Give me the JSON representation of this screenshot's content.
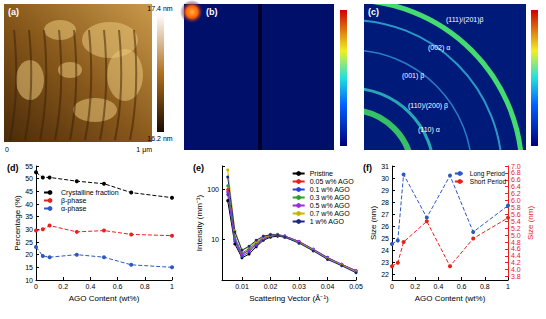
{
  "panels": {
    "a": {
      "label": "(a)",
      "scale_start": "0",
      "scale_end": "1 μm",
      "colorbar_max": "17.4 nm",
      "colorbar_min": "16.2 nm"
    },
    "b": {
      "label": "(b)"
    },
    "c": {
      "label": "(c)",
      "rings": [
        "(110) α",
        "(110)/(200) β",
        "(001) β",
        "(002) α",
        "(111)/(201)β"
      ]
    }
  },
  "chart_data": [
    {
      "type": "line",
      "title": "(d)",
      "x_label": "AGO Content (wt%)",
      "y_label": "Percentage (%)",
      "x": [
        0,
        0.05,
        0.1,
        0.3,
        0.5,
        0.7,
        1
      ],
      "series": [
        {
          "name": "Crystalline fraction",
          "color": "#000000",
          "marker": "circle",
          "line_style": "dashed",
          "values": [
            52.5,
            50.5,
            50.5,
            49,
            48,
            44.5,
            42.5
          ]
        },
        {
          "name": "β-phase",
          "color": "#e8201c",
          "marker": "circle",
          "line_style": "dashed",
          "values": [
            29.5,
            30,
            31.5,
            29,
            29.5,
            28,
            27.5
          ]
        },
        {
          "name": "α-phase",
          "color": "#2b58c4",
          "marker": "circle",
          "line_style": "dashed",
          "values": [
            23,
            19.5,
            19,
            20,
            19,
            16,
            15
          ]
        }
      ],
      "xlim": [
        0,
        1
      ],
      "xticks": [
        0,
        0.2,
        0.4,
        0.6,
        0.8,
        1
      ],
      "ylim": [
        10,
        55
      ],
      "yticks": [
        10,
        15,
        20,
        25,
        30,
        35,
        40,
        45,
        50,
        55
      ],
      "grid": false,
      "legend": "center left"
    },
    {
      "type": "line",
      "title": "(e)",
      "x_label": "Scattering Vector (Å⁻¹)",
      "y_label": "Intensity (mm⁻¹)",
      "x": [
        0.005,
        0.0075,
        0.01,
        0.0125,
        0.015,
        0.0175,
        0.02,
        0.0225,
        0.025,
        0.03,
        0.035,
        0.04,
        0.045,
        0.05
      ],
      "series": [
        {
          "name": "Pristine",
          "color": "#000000",
          "marker": "circle",
          "line_style": "solid",
          "values": [
            60,
            8,
            4.2,
            5,
            7,
            9.5,
            11,
            11.5,
            11,
            8.5,
            6,
            4,
            3,
            2.2
          ]
        },
        {
          "name": "0.05 w% AGO",
          "color": "#e8201c",
          "marker": "circle",
          "line_style": "solid",
          "values": [
            100,
            10,
            4.8,
            6,
            8,
            10.5,
            12,
            12.2,
            11.5,
            9,
            6.2,
            4.2,
            3.1,
            2.3
          ]
        },
        {
          "name": "0.1 w% AGO",
          "color": "#2b3fd8",
          "marker": "circle",
          "line_style": "solid",
          "values": [
            80,
            9,
            4.5,
            5.5,
            7.5,
            10,
            11.5,
            12,
            11.5,
            9,
            6.3,
            4.3,
            3.1,
            2.3
          ]
        },
        {
          "name": "0.3 w% AGO",
          "color": "#2ca02c",
          "marker": "circle",
          "line_style": "solid",
          "values": [
            120,
            11,
            5.2,
            6.5,
            8.5,
            11,
            12.5,
            12.5,
            11.5,
            8.8,
            6,
            4.1,
            3,
            2.2
          ]
        },
        {
          "name": "0.5 w% AGO",
          "color": "#9a2ed6",
          "marker": "circle",
          "line_style": "solid",
          "values": [
            90,
            10,
            5,
            6,
            8,
            10.5,
            12,
            12.3,
            11.6,
            9,
            6.2,
            4.2,
            3.1,
            2.3
          ]
        },
        {
          "name": "0.7 w% AGO",
          "color": "#c9b400",
          "marker": "circle",
          "line_style": "solid",
          "values": [
            250,
            15,
            6,
            7,
            9,
            11,
            12,
            12,
            11,
            8.5,
            6,
            4,
            3,
            2.2
          ]
        },
        {
          "name": "1 w% AGO",
          "color": "#1b2a80",
          "marker": "circle",
          "line_style": "solid",
          "values": [
            180,
            14,
            6,
            7.2,
            9.5,
            11.5,
            12.3,
            12,
            11,
            8.3,
            5.8,
            3.9,
            2.9,
            2.1
          ]
        }
      ],
      "xlim": [
        0.003,
        0.05
      ],
      "xticks": [
        0.01,
        0.02,
        0.03,
        0.04,
        0.05
      ],
      "ylim": [
        1.5,
        300
      ],
      "yticks": [
        10,
        100
      ],
      "log": "y",
      "grid": false,
      "legend": "upper right"
    },
    {
      "type": "line",
      "title": "(f)",
      "x_label": "AGO Content (wt%)",
      "y_label": "Size (nm)",
      "y2_label": "Size (nm)",
      "x": [
        0,
        0.05,
        0.1,
        0.3,
        0.5,
        0.7,
        1
      ],
      "series": [
        {
          "name": "Long Period",
          "color": "#2b58c4",
          "marker": "circle",
          "line_style": "dashed",
          "values": [
            24.5,
            24.8,
            30.3,
            26.7,
            30.2,
            25.5,
            27.7
          ]
        },
        {
          "name": "Short Period",
          "color": "#e8201c",
          "marker": "circle",
          "line_style": "dashed",
          "axis": "y2",
          "values": [
            4.1,
            4.2,
            4.8,
            5.4,
            4.1,
            4.9,
            5.5
          ]
        }
      ],
      "xlim": [
        0,
        1
      ],
      "xticks": [
        0,
        0.2,
        0.4,
        0.6,
        0.8,
        1
      ],
      "ylim": [
        21.5,
        31
      ],
      "yticks": [
        22,
        23,
        24,
        25,
        26,
        27,
        28,
        29,
        30,
        31
      ],
      "y2lim": [
        3.7,
        7.0
      ],
      "y2ticks": [
        3.8,
        {
          "value": 4,
          "label": "4.0"
        },
        4.2,
        4.4,
        4.6,
        4.8,
        {
          "value": 5,
          "label": "5.0"
        },
        5.2,
        5.4,
        5.6,
        5.8,
        {
          "value": 6,
          "label": "6.0"
        },
        6.2,
        6.4,
        6.6,
        6.8,
        {
          "value": 7,
          "label": "7.0"
        }
      ],
      "grid": false,
      "legend": "upper right"
    }
  ]
}
